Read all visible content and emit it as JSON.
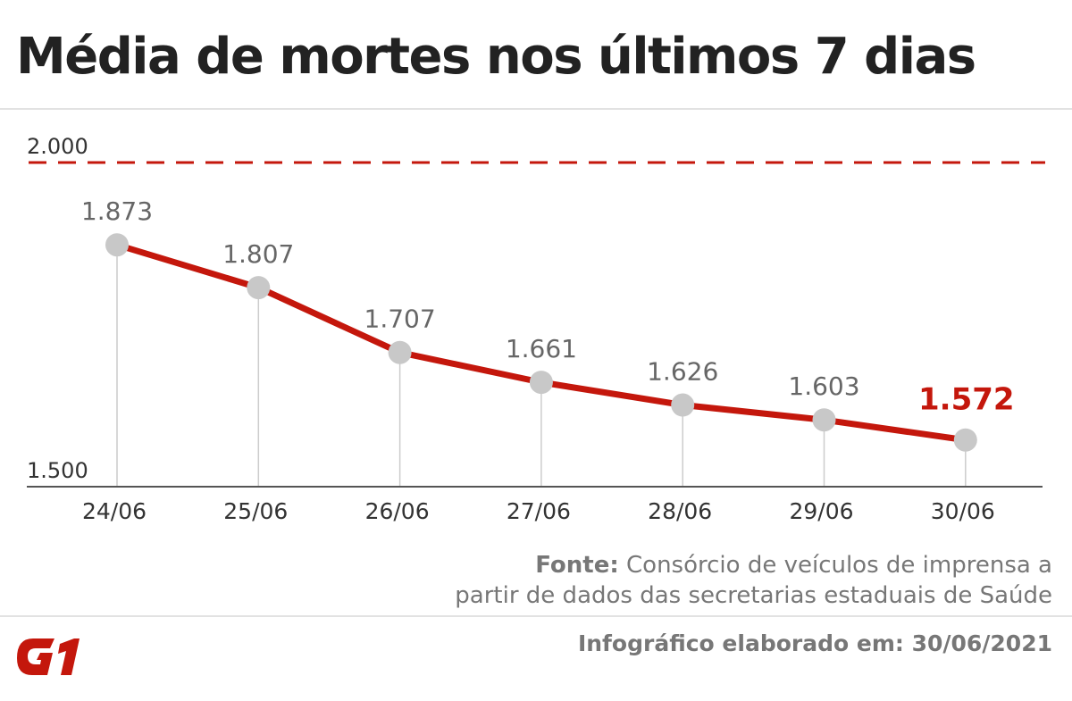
{
  "title": "Média de mortes nos últimos 7 dias",
  "source": {
    "label": "Fonte:",
    "line1": "Consórcio de veículos de imprensa a",
    "line2": "partir de dados das secretarias estaduais de Saúde"
  },
  "credit": "Infográfico elaborado em: 30/06/2021",
  "logo_text": "G1",
  "colors": {
    "line": "#c4170c",
    "point": "#c8c8c8",
    "reference": "#c4170c",
    "value_label": "#666666",
    "last_value_label": "#c4170c"
  },
  "chart_data": {
    "type": "line",
    "categories": [
      "24/06",
      "25/06",
      "26/06",
      "27/06",
      "28/06",
      "29/06",
      "30/06"
    ],
    "values": [
      1873,
      1807,
      1707,
      1661,
      1626,
      1603,
      1572
    ],
    "value_labels": [
      "1.873",
      "1.807",
      "1.707",
      "1.661",
      "1.626",
      "1.603",
      "1.572"
    ],
    "ylim": [
      1500,
      2000
    ],
    "yticks": [
      1500,
      2000
    ],
    "ytick_labels": [
      "1.500",
      "2.000"
    ],
    "reference_line": {
      "value": 2000,
      "style": "dashed"
    },
    "highlight_last": true,
    "grid": false,
    "xlabel": "",
    "ylabel": ""
  }
}
